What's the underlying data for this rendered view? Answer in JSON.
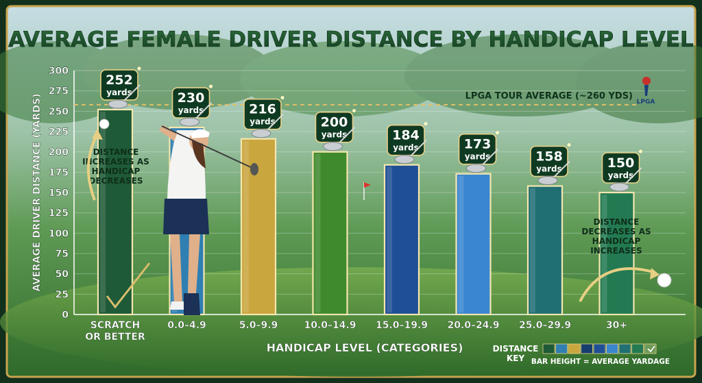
{
  "chart_data": {
    "type": "bar",
    "title": "AVERAGE FEMALE DRIVER DISTANCE BY HANDICAP LEVEL",
    "xlabel": "HANDICAP LEVEL (CATEGORIES)",
    "ylabel": "AVERAGE DRIVER DISTANCE (YARDS)",
    "ylim": [
      0,
      300
    ],
    "yticks": [
      0,
      25,
      50,
      75,
      100,
      125,
      150,
      175,
      200,
      225,
      250,
      275,
      300
    ],
    "categories": [
      "SCRATCH OR BETTER",
      "0.0–4.9",
      "5.0–9.9",
      "10.0–14.9",
      "15.0–19.9",
      "20.0–24.9",
      "25.0–29.9",
      "30+"
    ],
    "values": [
      252,
      230,
      216,
      200,
      184,
      173,
      158,
      150
    ],
    "unit": "yards",
    "bar_colors": [
      "#1e5a37",
      "#2f7fb2",
      "#c9a63e",
      "#3f8a2d",
      "#1f4f96",
      "#3a86cf",
      "#1f6f73",
      "#237a52"
    ],
    "reference_line": {
      "value": 258,
      "label": "LPGA TOUR AVERAGE (~260 YDS)",
      "logo_text": "LPGA"
    },
    "annotations": [
      {
        "text": "DISTANCE INCREASES AS HANDICAP DECREASES",
        "icon": "up-arrow-icon"
      },
      {
        "text": "DISTANCE DECREASES AS HANDICAP INCREASES",
        "icon": "down-arrow-icon"
      }
    ],
    "legend": {
      "title": "DISTANCE KEY",
      "caption": "BAR HEIGHT = AVERAGE YARDAGE",
      "swatches": [
        "#1e5a37",
        "#2f7fb2",
        "#c9a63e",
        "#173d6e",
        "#1f4f96",
        "#3a86cf",
        "#1f6f73",
        "#237a52",
        "#6e9a5a"
      ],
      "placement": "bottom-right"
    },
    "grid": true
  }
}
